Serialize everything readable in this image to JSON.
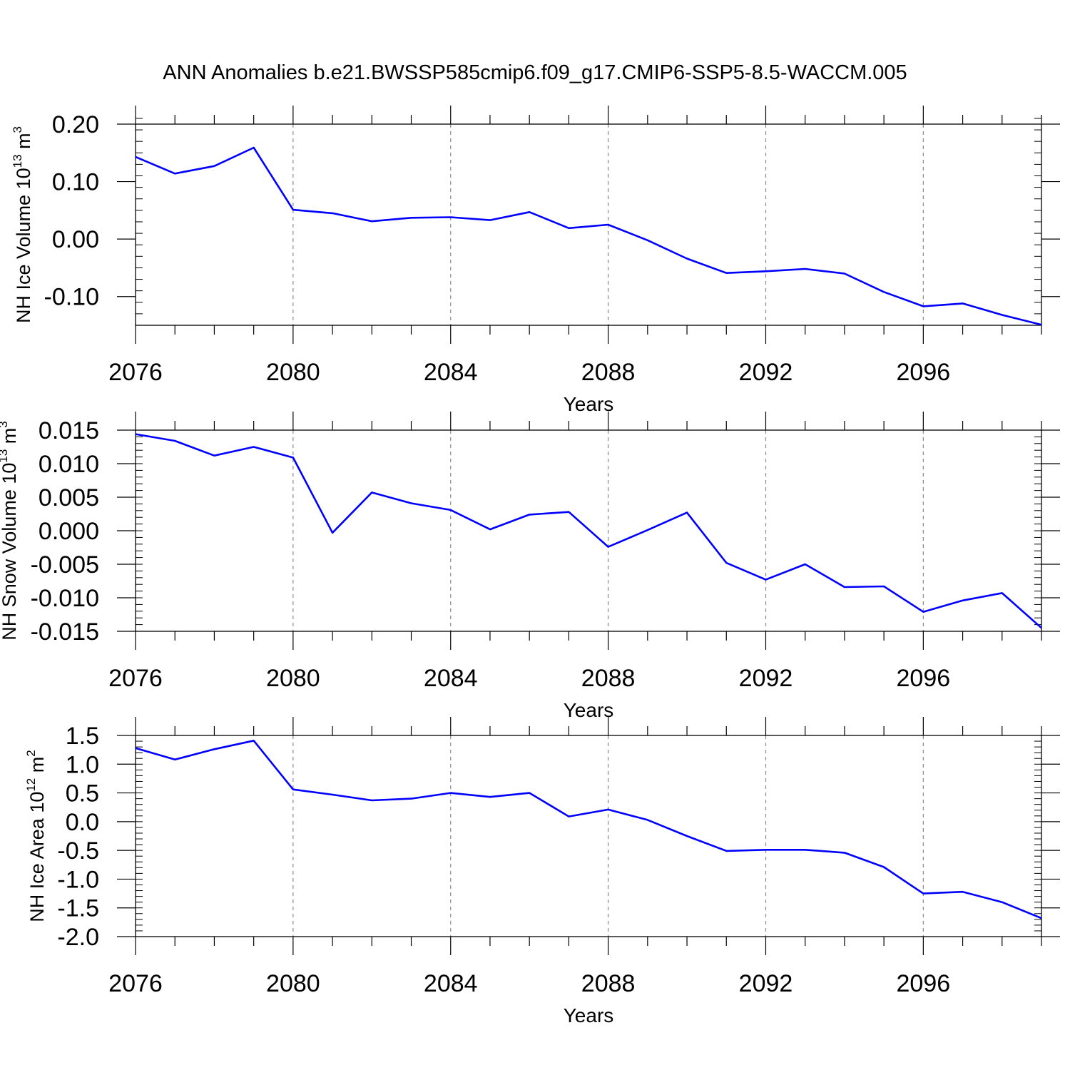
{
  "figure": {
    "title": "ANN Anomalies b.e21.BWSSP585cmip6.f09_g17.CMIP6-SSP5-8.5-WACCM.005"
  },
  "colors": {
    "line": "#0000ff",
    "axis": "#000000",
    "grid": "#8a8a8a"
  },
  "chart_data": [
    {
      "type": "line",
      "ylabel": "NH Ice Volume 10",
      "ylabel_exp": "13",
      "ylabel_unit": " m",
      "ylabel_unit_exp": "3",
      "xlabel": "Years",
      "xlim": [
        2076,
        2099
      ],
      "ylim": [
        -0.15,
        0.2
      ],
      "yticks": [
        0.2,
        0.1,
        0.0,
        -0.1
      ],
      "ytick_labels": [
        "0.20",
        "0.10",
        "0.00",
        "-0.10"
      ],
      "yminor_step": 0.02,
      "xticks": [
        2076,
        2080,
        2084,
        2088,
        2092,
        2096
      ],
      "xtick_labels": [
        "2076",
        "2080",
        "2084",
        "2088",
        "2092",
        "2096"
      ],
      "x": [
        2076,
        2077,
        2078,
        2079,
        2080,
        2081,
        2082,
        2083,
        2084,
        2085,
        2086,
        2087,
        2088,
        2089,
        2090,
        2091,
        2092,
        2093,
        2094,
        2095,
        2096,
        2097,
        2098,
        2099
      ],
      "series": [
        {
          "name": "NH Ice Volume",
          "values": [
            0.143,
            0.114,
            0.127,
            0.159,
            0.051,
            0.045,
            0.031,
            0.037,
            0.038,
            0.033,
            0.047,
            0.019,
            0.025,
            -0.002,
            -0.034,
            -0.059,
            -0.056,
            -0.052,
            -0.06,
            -0.092,
            -0.117,
            -0.112,
            -0.132,
            -0.149
          ]
        }
      ]
    },
    {
      "type": "line",
      "ylabel": "NH Snow Volume 10",
      "ylabel_exp": "13",
      "ylabel_unit": " m",
      "ylabel_unit_exp": "3",
      "xlabel": "Years",
      "xlim": [
        2076,
        2099
      ],
      "ylim": [
        -0.015,
        0.015
      ],
      "yticks": [
        0.015,
        0.01,
        0.005,
        0.0,
        -0.005,
        -0.01,
        -0.015
      ],
      "ytick_labels": [
        "0.015",
        "0.010",
        "0.005",
        "0.000",
        "-0.005",
        "-0.010",
        "-0.015"
      ],
      "yminor_step": 0.001,
      "xticks": [
        2076,
        2080,
        2084,
        2088,
        2092,
        2096
      ],
      "xtick_labels": [
        "2076",
        "2080",
        "2084",
        "2088",
        "2092",
        "2096"
      ],
      "x": [
        2076,
        2077,
        2078,
        2079,
        2080,
        2081,
        2082,
        2083,
        2084,
        2085,
        2086,
        2087,
        2088,
        2089,
        2090,
        2091,
        2092,
        2093,
        2094,
        2095,
        2096,
        2097,
        2098,
        2099
      ],
      "series": [
        {
          "name": "NH Snow Volume",
          "values": [
            0.0144,
            0.0134,
            0.0112,
            0.0125,
            0.0109,
            -0.0003,
            0.0057,
            0.0041,
            0.0031,
            0.0002,
            0.0024,
            0.0028,
            -0.0024,
            0.0001,
            0.0027,
            -0.0048,
            -0.0073,
            -0.005,
            -0.0084,
            -0.0083,
            -0.0121,
            -0.0104,
            -0.0093,
            -0.0145
          ]
        }
      ]
    },
    {
      "type": "line",
      "ylabel": "NH Ice Area 10",
      "ylabel_exp": "12",
      "ylabel_unit": " m",
      "ylabel_unit_exp": "2",
      "xlabel": "Years",
      "xlim": [
        2076,
        2099
      ],
      "ylim": [
        -2.0,
        1.5
      ],
      "yticks": [
        1.5,
        1.0,
        0.5,
        0.0,
        -0.5,
        -1.0,
        -1.5,
        -2.0
      ],
      "ytick_labels": [
        "1.5",
        "1.0",
        "0.5",
        "0.0",
        "-0.5",
        "-1.0",
        "-1.5",
        "-2.0"
      ],
      "yminor_step": 0.1,
      "xticks": [
        2076,
        2080,
        2084,
        2088,
        2092,
        2096
      ],
      "xtick_labels": [
        "2076",
        "2080",
        "2084",
        "2088",
        "2092",
        "2096"
      ],
      "x": [
        2076,
        2077,
        2078,
        2079,
        2080,
        2081,
        2082,
        2083,
        2084,
        2085,
        2086,
        2087,
        2088,
        2089,
        2090,
        2091,
        2092,
        2093,
        2094,
        2095,
        2096,
        2097,
        2098,
        2099
      ],
      "series": [
        {
          "name": "NH Ice Area",
          "values": [
            1.28,
            1.08,
            1.26,
            1.41,
            0.56,
            0.47,
            0.37,
            0.4,
            0.5,
            0.43,
            0.5,
            0.09,
            0.21,
            0.03,
            -0.25,
            -0.51,
            -0.49,
            -0.49,
            -0.54,
            -0.79,
            -1.25,
            -1.22,
            -1.4,
            -1.68
          ]
        }
      ]
    }
  ]
}
